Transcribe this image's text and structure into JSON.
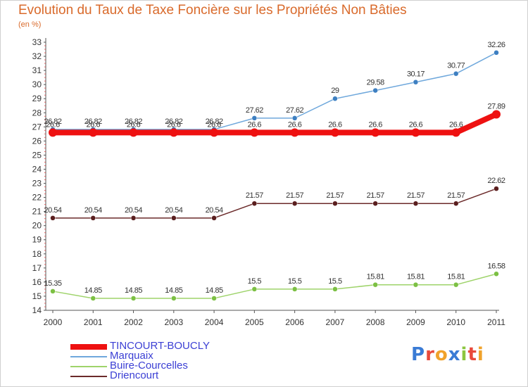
{
  "title": "Evolution du Taux de Taxe Foncière sur les Propriétés Non Bâties",
  "unit": "(en %)",
  "logo": {
    "text": "Proxiti",
    "letters": [
      "P",
      "r",
      "o",
      "x",
      "i",
      "t",
      "i"
    ],
    "colors": [
      "#3a7bd5",
      "#e8493b",
      "#f0a22b",
      "#3a7bd5",
      "#8cc63f",
      "#e8493b",
      "#f0a22b"
    ]
  },
  "chart_data": {
    "type": "line",
    "x": [
      "2000",
      "2001",
      "2002",
      "2003",
      "2004",
      "2005",
      "2006",
      "2007",
      "2008",
      "2009",
      "2010",
      "2011"
    ],
    "ylim": [
      14,
      33
    ],
    "yticks": [
      14,
      15,
      16,
      17,
      18,
      19,
      20,
      21,
      22,
      23,
      24,
      25,
      26,
      27,
      28,
      29,
      30,
      31,
      32,
      33
    ],
    "grid": false,
    "legend_placement": "bottom-left",
    "series": [
      {
        "name": "Marquaix",
        "color": "#6fa8dc",
        "marker": "#3d7fc1",
        "values": [
          26.82,
          26.82,
          26.82,
          26.82,
          26.82,
          27.62,
          27.62,
          29,
          29.58,
          30.17,
          30.77,
          32.26
        ],
        "labels": [
          "26.82",
          "26.82",
          "26.82",
          "26.82",
          "26.82",
          "27.62",
          "27.62",
          "29",
          "29.58",
          "30.17",
          "30.77",
          "32.26"
        ]
      },
      {
        "name": "TINCOURT-BOUCLY",
        "color": "#ee1111",
        "marker": "#ee1111",
        "values": [
          26.6,
          26.6,
          26.6,
          26.6,
          26.6,
          26.6,
          26.6,
          26.6,
          26.6,
          26.6,
          26.6,
          27.89
        ],
        "labels": [
          "26.6",
          "26.6",
          "26.6",
          "26.6",
          "26.6",
          "26.6",
          "26.6",
          "26.6",
          "26.6",
          "26.6",
          "26.6",
          "27.89"
        ]
      },
      {
        "name": "Driencourt",
        "color": "#6b2a2a",
        "marker": "#5a1e1e",
        "values": [
          20.54,
          20.54,
          20.54,
          20.54,
          20.54,
          21.57,
          21.57,
          21.57,
          21.57,
          21.57,
          21.57,
          22.62
        ],
        "labels": [
          "20.54",
          "20.54",
          "20.54",
          "20.54",
          "20.54",
          "21.57",
          "21.57",
          "21.57",
          "21.57",
          "21.57",
          "21.57",
          "22.62"
        ]
      },
      {
        "name": "Buire-Courcelles",
        "color": "#9ed36a",
        "marker": "#7cc043",
        "values": [
          15.35,
          14.85,
          14.85,
          14.85,
          14.85,
          15.5,
          15.5,
          15.5,
          15.81,
          15.81,
          15.81,
          16.58
        ],
        "labels": [
          "15.35",
          "14.85",
          "14.85",
          "14.85",
          "14.85",
          "15.5",
          "15.5",
          "15.5",
          "15.81",
          "15.81",
          "15.81",
          "16.58"
        ]
      }
    ],
    "legend": [
      {
        "name": "TINCOURT-BOUCLY",
        "color": "#ee1111"
      },
      {
        "name": "Marquaix",
        "color": "#6fa8dc"
      },
      {
        "name": "Buire-Courcelles",
        "color": "#9ed36a"
      },
      {
        "name": "Driencourt",
        "color": "#6b2a2a"
      }
    ]
  }
}
